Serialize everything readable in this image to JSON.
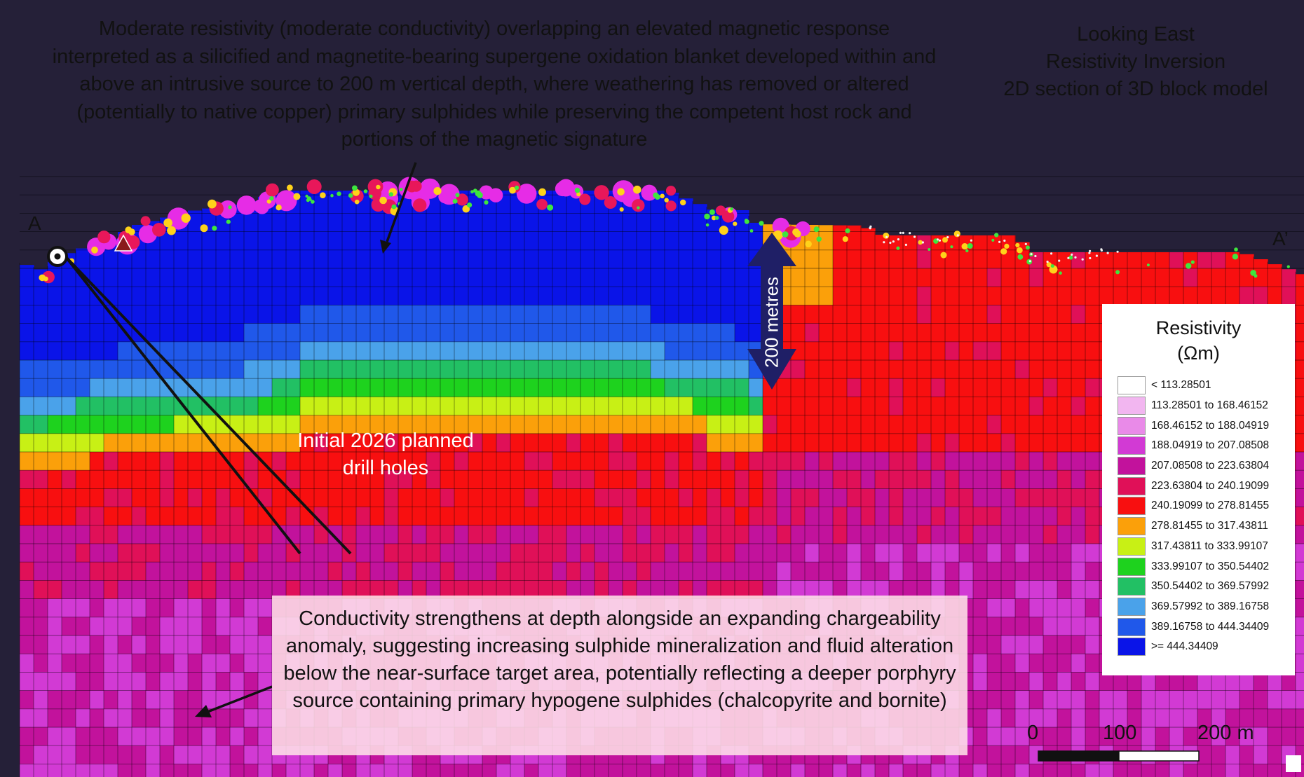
{
  "annotations": {
    "top_note": "Moderate resistivity (moderate conductivity) overlapping an elevated magnetic response interpreted as a silicified and magnetite-bearing supergene oxidation blanket developed within and above an intrusive source to 200 m vertical depth, where weathering has removed or altered (potentially to native copper) primary sulphides while preserving the competent host rock and portions of the magnetic signature",
    "bottom_note": "Conductivity strengthens at depth alongside an expanding chargeability anomaly, suggesting increasing sulphide mineralization and fluid alteration below the near-surface target area, potentially reflecting a deeper porphyry source containing primary hypogene sulphides (chalcopyrite and bornite)",
    "drill_holes": "Initial 2026 planned drill holes"
  },
  "view": {
    "line1": "Looking East",
    "line2": "Resistivity Inversion",
    "line3": "2D section of 3D block model"
  },
  "section": {
    "start_label": "A",
    "end_label": "A’",
    "depth_arrow_label": "200 metres"
  },
  "legend": {
    "title_line1": "Resistivity",
    "title_line2": "(Ωm)",
    "items": [
      {
        "label": "< 113.28501",
        "color": "#ffffff"
      },
      {
        "label": "113.28501 to 168.46152",
        "color": "#f2b6f0"
      },
      {
        "label": "168.46152 to 188.04919",
        "color": "#e98ae8"
      },
      {
        "label": "188.04919 to 207.08508",
        "color": "#d23ad4"
      },
      {
        "label": "207.08508 to 223.63804",
        "color": "#c2129c"
      },
      {
        "label": "223.63804 to 240.19099",
        "color": "#e01058"
      },
      {
        "label": "240.19099 to 278.81455",
        "color": "#f80f10"
      },
      {
        "label": "278.81455 to 317.43811",
        "color": "#fba00a"
      },
      {
        "label": "317.43811 to 333.99107",
        "color": "#c8f015"
      },
      {
        "label": "333.99107 to 350.54402",
        "color": "#1ed21e"
      },
      {
        "label": "350.54402 to 369.57992",
        "color": "#22c064"
      },
      {
        "label": "369.57992 to 389.16758",
        "color": "#4aa2ea"
      },
      {
        "label": "389.16758 to 444.34409",
        "color": "#2058ea"
      },
      {
        "label": ">= 444.34409",
        "color": "#0a14e8"
      }
    ]
  },
  "scale_bar": {
    "tick_0": "0",
    "tick_100": "100",
    "tick_200": "200 m"
  },
  "colors": {
    "background": "#252038",
    "depth_arrow": "#1f1f66",
    "drill_hole": "#111111",
    "chargeability_dot_magenta": "#e62ce6",
    "chargeability_dot_red": "#e8175a",
    "sample_dot_yellow": "#ffd21a",
    "sample_dot_green": "#3ee63e"
  }
}
